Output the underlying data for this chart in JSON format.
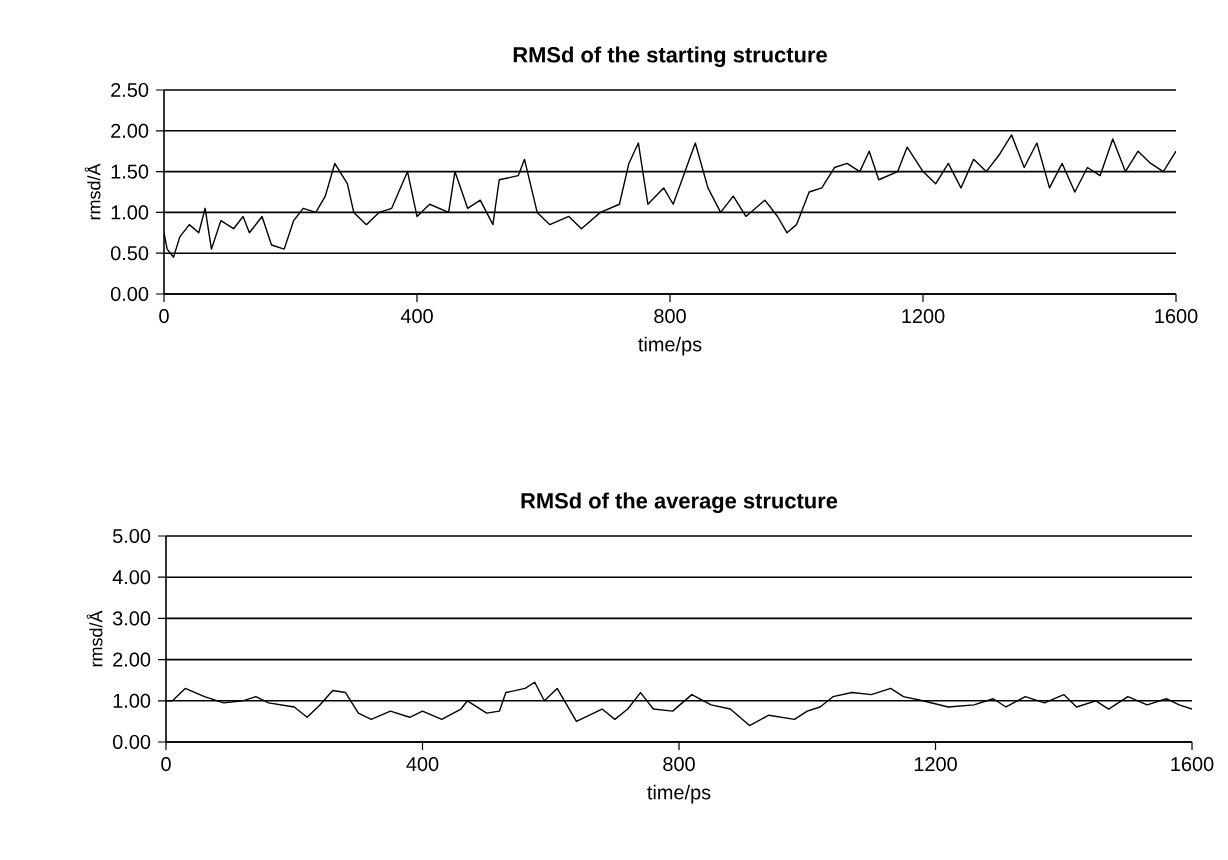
{
  "chart_data": [
    {
      "type": "line",
      "title": "RMSd of the starting structure",
      "xlabel": "time/ps",
      "ylabel": "rmsd/Å",
      "xlim": [
        0,
        1600
      ],
      "xticks": [
        0,
        400,
        800,
        1200,
        1600
      ],
      "ylim": [
        0,
        2.5
      ],
      "yticks": [
        {
          "value": 0,
          "label": "0.00"
        },
        {
          "value": 0.5,
          "label": "0.50"
        },
        {
          "value": 1,
          "label": "1.00"
        },
        {
          "value": 1.5,
          "label": "1.50"
        },
        {
          "value": 2,
          "label": "2.00"
        },
        {
          "value": 2.5,
          "label": "2.50"
        }
      ],
      "grid": "y",
      "marker": "none",
      "line_style": "solid",
      "series": [
        {
          "color": "#000000",
          "x": [
            0,
            5,
            15,
            25,
            40,
            55,
            65,
            75,
            90,
            110,
            125,
            135,
            155,
            170,
            190,
            205,
            220,
            240,
            255,
            270,
            290,
            300,
            320,
            340,
            360,
            385,
            400,
            420,
            450,
            460,
            480,
            500,
            520,
            530,
            560,
            570,
            590,
            610,
            640,
            660,
            690,
            720,
            735,
            750,
            765,
            790,
            805,
            840,
            860,
            880,
            900,
            920,
            950,
            970,
            985,
            1000,
            1020,
            1040,
            1060,
            1080,
            1100,
            1115,
            1130,
            1160,
            1175,
            1200,
            1220,
            1240,
            1260,
            1280,
            1300,
            1320,
            1340,
            1360,
            1380,
            1400,
            1420,
            1440,
            1460,
            1480,
            1500,
            1520,
            1540,
            1560,
            1580,
            1600
          ],
          "values": [
            0.75,
            0.55,
            0.45,
            0.7,
            0.85,
            0.75,
            1.05,
            0.55,
            0.9,
            0.8,
            0.95,
            0.75,
            0.95,
            0.6,
            0.55,
            0.9,
            1.05,
            1.0,
            1.2,
            1.6,
            1.35,
            1.0,
            0.85,
            1.0,
            1.05,
            1.5,
            0.95,
            1.1,
            1.0,
            1.5,
            1.05,
            1.15,
            0.85,
            1.4,
            1.45,
            1.65,
            1.0,
            0.85,
            0.95,
            0.8,
            1.0,
            1.1,
            1.6,
            1.85,
            1.1,
            1.3,
            1.1,
            1.85,
            1.3,
            1.0,
            1.2,
            0.95,
            1.15,
            0.95,
            0.75,
            0.85,
            1.25,
            1.3,
            1.55,
            1.6,
            1.5,
            1.75,
            1.4,
            1.5,
            1.8,
            1.5,
            1.35,
            1.6,
            1.3,
            1.65,
            1.5,
            1.7,
            1.95,
            1.55,
            1.85,
            1.3,
            1.6,
            1.25,
            1.55,
            1.45,
            1.9,
            1.5,
            1.75,
            1.6,
            1.5,
            1.75
          ]
        }
      ]
    },
    {
      "type": "line",
      "title": "RMSd of the average structure",
      "xlabel": "time/ps",
      "ylabel": "rmsd/Å",
      "xlim": [
        0,
        1600
      ],
      "xticks": [
        0,
        400,
        800,
        1200,
        1600
      ],
      "ylim": [
        0,
        5
      ],
      "yticks": [
        {
          "value": 0,
          "label": "0.00"
        },
        {
          "value": 1,
          "label": "1.00"
        },
        {
          "value": 2,
          "label": "2.00"
        },
        {
          "value": 3,
          "label": "3.00"
        },
        {
          "value": 4,
          "label": "4.00"
        },
        {
          "value": 5,
          "label": "5.00"
        }
      ],
      "grid": "y",
      "marker": "none",
      "line_style": "solid",
      "series": [
        {
          "color": "#000000",
          "x": [
            0,
            10,
            30,
            60,
            90,
            120,
            140,
            160,
            200,
            220,
            240,
            260,
            280,
            300,
            320,
            350,
            380,
            400,
            430,
            460,
            470,
            500,
            520,
            530,
            560,
            575,
            590,
            610,
            640,
            680,
            700,
            720,
            740,
            760,
            790,
            820,
            850,
            880,
            910,
            940,
            980,
            1000,
            1020,
            1040,
            1070,
            1100,
            1130,
            1150,
            1180,
            1220,
            1260,
            1290,
            1310,
            1340,
            1370,
            1400,
            1420,
            1450,
            1470,
            1500,
            1530,
            1560,
            1580,
            1600
          ],
          "values": [
            1.0,
            1.0,
            1.3,
            1.1,
            0.95,
            1.0,
            1.1,
            0.95,
            0.85,
            0.6,
            0.9,
            1.25,
            1.2,
            0.7,
            0.55,
            0.75,
            0.6,
            0.75,
            0.55,
            0.8,
            1.0,
            0.7,
            0.75,
            1.2,
            1.3,
            1.45,
            1.0,
            1.3,
            0.5,
            0.8,
            0.55,
            0.8,
            1.2,
            0.8,
            0.75,
            1.15,
            0.9,
            0.8,
            0.4,
            0.65,
            0.55,
            0.75,
            0.85,
            1.1,
            1.2,
            1.15,
            1.3,
            1.1,
            1.0,
            0.85,
            0.9,
            1.05,
            0.85,
            1.1,
            0.95,
            1.15,
            0.85,
            1.0,
            0.8,
            1.1,
            0.9,
            1.05,
            0.9,
            0.8
          ]
        }
      ]
    }
  ]
}
